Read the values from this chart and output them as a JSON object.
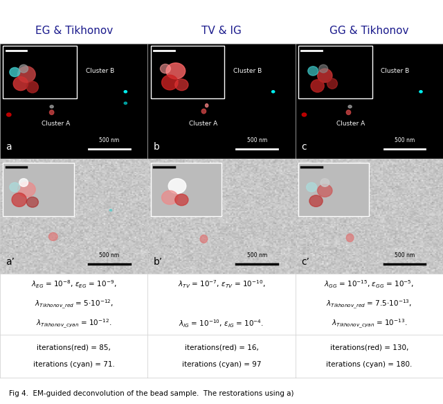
{
  "title_col1": "EG & Tikhonov",
  "title_col2": "TV & IG",
  "title_col3": "GG & Tikhonov",
  "bg_color": "#ffffff",
  "text_color": "#000000",
  "title_color": "#1a1a8c",
  "border_color": "#cccccc",
  "caption": "Fig 4.  EM-guided deconvolution of the bead sample.  The restorations using a)"
}
